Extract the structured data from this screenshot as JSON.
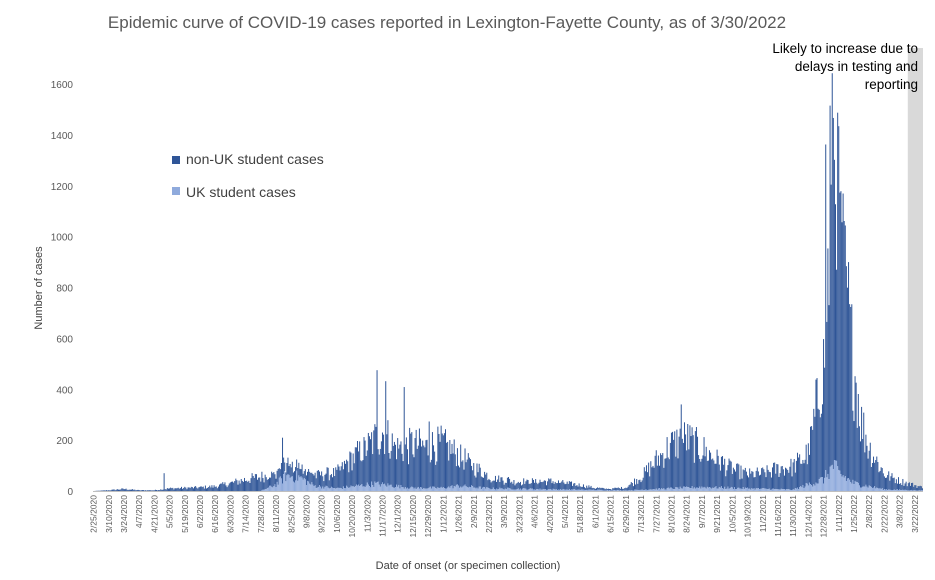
{
  "chart_data": {
    "type": "bar",
    "stacked": true,
    "title": "Epidemic curve of COVID-19 cases reported in Lexington-Fayette County, as of 3/30/2022",
    "xlabel": "Date of onset (or specimen collection)",
    "ylabel": "Number of cases",
    "ylim": [
      0,
      1600
    ],
    "yticks": [
      0,
      200,
      400,
      600,
      800,
      1000,
      1200,
      1400,
      1600
    ],
    "grid": false,
    "legend_position": "upper-left",
    "x_start": "2020-02-25",
    "x_end": "2022-03-29",
    "x_tick_labels": [
      "2/25/2020",
      "3/10/2020",
      "3/24/2020",
      "4/7/2020",
      "4/21/2020",
      "5/5/2020",
      "5/19/2020",
      "6/2/2020",
      "6/16/2020",
      "6/30/2020",
      "7/14/2020",
      "7/28/2020",
      "8/11/2020",
      "8/25/2020",
      "9/8/2020",
      "9/22/2020",
      "10/6/2020",
      "10/20/2020",
      "11/3/2020",
      "11/17/2020",
      "12/1/2020",
      "12/15/2020",
      "12/29/2020",
      "1/12/2021",
      "1/26/2021",
      "2/9/2021",
      "2/23/2021",
      "3/9/2021",
      "3/23/2021",
      "4/6/2021",
      "4/20/2021",
      "5/4/2021",
      "5/18/2021",
      "6/1/2021",
      "6/15/2021",
      "6/29/2021",
      "7/13/2021",
      "7/27/2021",
      "8/10/2021",
      "8/24/2021",
      "9/7/2021",
      "9/21/2021",
      "10/5/2021",
      "10/19/2021",
      "11/2/2021",
      "11/16/2021",
      "11/30/2021",
      "12/14/2021",
      "12/28/2021",
      "1/11/2022",
      "1/25/2022",
      "2/8/2022",
      "2/22/2022",
      "3/8/2022",
      "3/22/2022"
    ],
    "x_tick_labels_display": [
      "2/25/2020",
      "3/10/2020",
      "3/24/2020",
      "4/7/2020",
      "4/21/2020",
      "5/5/2020",
      "5/19/2020",
      "6/2/2020",
      "6/16/2020",
      "6/30/2020",
      "7/14/2020",
      "7/28/2020",
      "8/11/2020",
      "8/25/2020",
      "9/8/2020",
      "9/22/2020",
      "10/6/2020",
      "10/20/2020",
      "11/3/2020",
      "11/17/2020",
      "12/1/2020",
      "12/15/2020",
      "12/29/2020",
      "1/12/2021",
      "1/26/2021",
      "2/9/2021",
      "2/23/2021",
      "3/9/2021",
      "3/23/2021",
      "4/6/2021",
      "4/20/2021",
      "5/4/2021",
      "5/18/2021",
      "6/1/2021",
      "6/15/2021",
      "6/29/2021",
      "7/13/2021",
      "7/27/2021",
      "8/10/2021",
      "8/24/2021",
      "9/7/2021",
      "9/21/2021",
      "10/5/2021",
      "10/19/2021",
      "11/2/2021",
      "11/16/2021",
      "11/30/2021",
      "12/14/2021",
      "12/28/2021",
      "1/11/2022",
      "1/25/2022",
      "2/8/2022",
      "2/22/2022",
      "3/8/2022",
      "3/22/2022"
    ],
    "series": [
      {
        "name": "non-UK student cases",
        "color": "#2f5597",
        "profile": [
          [
            "2020-02-25",
            0
          ],
          [
            "2020-03-10",
            3
          ],
          [
            "2020-03-24",
            8
          ],
          [
            "2020-04-07",
            3
          ],
          [
            "2020-04-21",
            3
          ],
          [
            "2020-05-05",
            10
          ],
          [
            "2020-05-19",
            12
          ],
          [
            "2020-06-02",
            14
          ],
          [
            "2020-06-16",
            18
          ],
          [
            "2020-06-30",
            30
          ],
          [
            "2020-07-14",
            45
          ],
          [
            "2020-07-28",
            55
          ],
          [
            "2020-08-11",
            45
          ],
          [
            "2020-08-25",
            45
          ],
          [
            "2020-09-08",
            40
          ],
          [
            "2020-09-22",
            50
          ],
          [
            "2020-10-06",
            60
          ],
          [
            "2020-10-20",
            110
          ],
          [
            "2020-11-03",
            150
          ],
          [
            "2020-11-17",
            200
          ],
          [
            "2020-12-01",
            150
          ],
          [
            "2020-12-15",
            170
          ],
          [
            "2020-12-29",
            160
          ],
          [
            "2021-01-12",
            170
          ],
          [
            "2021-01-26",
            120
          ],
          [
            "2021-02-09",
            80
          ],
          [
            "2021-02-23",
            45
          ],
          [
            "2021-03-09",
            35
          ],
          [
            "2021-03-23",
            28
          ],
          [
            "2021-04-06",
            30
          ],
          [
            "2021-04-20",
            32
          ],
          [
            "2021-05-04",
            25
          ],
          [
            "2021-05-18",
            18
          ],
          [
            "2021-06-01",
            8
          ],
          [
            "2021-06-15",
            6
          ],
          [
            "2021-06-29",
            12
          ],
          [
            "2021-07-13",
            50
          ],
          [
            "2021-07-27",
            110
          ],
          [
            "2021-08-10",
            170
          ],
          [
            "2021-08-24",
            190
          ],
          [
            "2021-09-07",
            150
          ],
          [
            "2021-09-21",
            110
          ],
          [
            "2021-10-05",
            75
          ],
          [
            "2021-10-19",
            55
          ],
          [
            "2021-11-02",
            60
          ],
          [
            "2021-11-16",
            80
          ],
          [
            "2021-11-30",
            90
          ],
          [
            "2021-12-14",
            120
          ],
          [
            "2021-12-28",
            450
          ],
          [
            "2022-01-05",
            1100
          ],
          [
            "2022-01-11",
            950
          ],
          [
            "2022-01-18",
            700
          ],
          [
            "2022-01-25",
            450
          ],
          [
            "2022-02-01",
            250
          ],
          [
            "2022-02-08",
            150
          ],
          [
            "2022-02-22",
            60
          ],
          [
            "2022-03-08",
            35
          ],
          [
            "2022-03-22",
            20
          ],
          [
            "2022-03-29",
            12
          ]
        ],
        "spikes": [
          [
            "2020-04-30",
            70
          ],
          [
            "2020-08-17",
            180
          ],
          [
            "2020-11-12",
            440
          ],
          [
            "2020-11-20",
            410
          ],
          [
            "2020-12-07",
            400
          ],
          [
            "2020-12-30",
            260
          ],
          [
            "2021-08-19",
            330
          ],
          [
            "2021-12-30",
            1280
          ],
          [
            "2022-01-03",
            1420
          ],
          [
            "2022-01-06",
            1380
          ],
          [
            "2022-01-10",
            1390
          ],
          [
            "2022-01-14",
            1000
          ],
          [
            "2022-01-19",
            750
          ]
        ]
      },
      {
        "name": "UK student cases",
        "color": "#8faadc",
        "profile": [
          [
            "2020-02-25",
            0
          ],
          [
            "2020-07-28",
            0
          ],
          [
            "2020-08-11",
            25
          ],
          [
            "2020-08-20",
            60
          ],
          [
            "2020-09-01",
            55
          ],
          [
            "2020-09-15",
            20
          ],
          [
            "2020-10-06",
            10
          ],
          [
            "2020-11-10",
            28
          ],
          [
            "2020-12-15",
            12
          ],
          [
            "2021-01-12",
            12
          ],
          [
            "2021-01-26",
            20
          ],
          [
            "2021-02-23",
            10
          ],
          [
            "2021-06-29",
            2
          ],
          [
            "2021-08-10",
            10
          ],
          [
            "2021-09-07",
            15
          ],
          [
            "2021-11-30",
            5
          ],
          [
            "2021-12-28",
            45
          ],
          [
            "2022-01-06",
            100
          ],
          [
            "2022-01-11",
            70
          ],
          [
            "2022-01-25",
            30
          ],
          [
            "2022-02-22",
            6
          ],
          [
            "2022-03-29",
            2
          ]
        ],
        "spikes": []
      }
    ],
    "shaded_region": {
      "start": "2022-03-16",
      "end": "2022-03-29"
    },
    "annotation": [
      "Likely to increase due to",
      "delays in testing and",
      "reporting"
    ]
  }
}
